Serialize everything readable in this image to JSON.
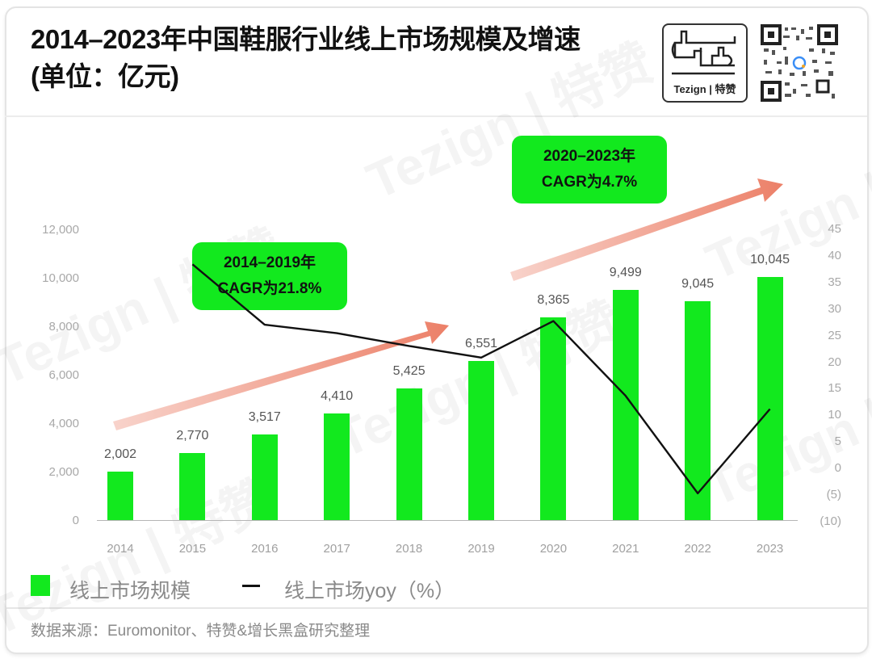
{
  "header": {
    "title": "2014–2023年中国鞋服行业线上市场规模及增速 (单位：亿元)",
    "logo_text": "Tezign | 特赞",
    "logo_icon": "thumbs-up-icon",
    "qr_icon": "qr-code-icon"
  },
  "watermark_text": "Tezign | 特赞",
  "chart_data": {
    "type": "bar+line",
    "title": "2014–2023年中国鞋服行业线上市场规模及增速 (单位：亿元)",
    "categories": [
      "2014",
      "2015",
      "2016",
      "2017",
      "2018",
      "2019",
      "2020",
      "2021",
      "2022",
      "2023"
    ],
    "series": [
      {
        "name": "线上市场规模",
        "type": "bar",
        "axis": "left",
        "color": "#12e91e",
        "values": [
          2002,
          2770,
          3517,
          4410,
          5425,
          6551,
          8365,
          9499,
          9045,
          10045
        ]
      },
      {
        "name": "线上市场yoy (%)",
        "type": "line",
        "axis": "right",
        "color": "#111111",
        "values": [
          null,
          38.4,
          27.0,
          25.4,
          23.0,
          20.8,
          27.7,
          13.6,
          -4.8,
          11.1
        ]
      }
    ],
    "left_axis": {
      "ylim": [
        0,
        12000
      ],
      "ticks": [
        "0",
        "2,000",
        "4,000",
        "6,000",
        "8,000",
        "10,000",
        "12,000"
      ]
    },
    "right_axis": {
      "ylim": [
        -10,
        45
      ],
      "ticks": [
        "(10)",
        "(5)",
        "0",
        "5",
        "10",
        "15",
        "20",
        "25",
        "30",
        "35",
        "40",
        "45"
      ]
    },
    "bar_labels": [
      "2,002",
      "2,770",
      "3,517",
      "4,410",
      "5,425",
      "6,551",
      "8,365",
      "9,499",
      "9,045",
      "10,045"
    ],
    "annotations": [
      {
        "line1": "2014–2019年",
        "line2": "CAGR为21.8%"
      },
      {
        "line1": "2020–2023年",
        "line2": "CAGR为4.7%"
      }
    ],
    "grid": false,
    "legend_position": "bottom-left"
  },
  "legend": {
    "bar_label": "线上市场规模",
    "line_label": "线上市场yoy（%）"
  },
  "footer": {
    "source": "数据来源：Euromonitor、特赞&增长黑盒研究整理"
  }
}
